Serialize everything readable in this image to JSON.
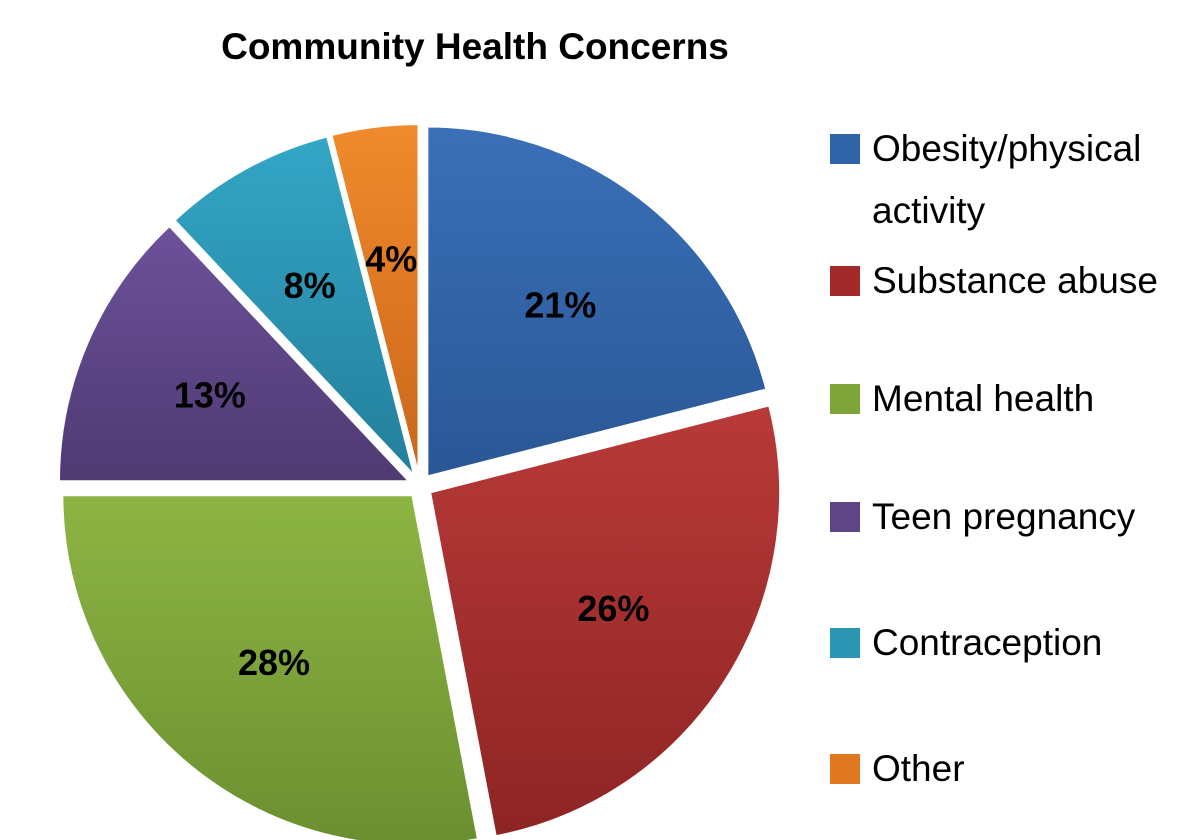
{
  "chart_data": {
    "type": "pie",
    "title": "Community Health Concerns",
    "legend_position": "right",
    "slices": [
      {
        "name": "Obesity/physical activity",
        "value": 21,
        "label": "21%",
        "color": "#3163a8"
      },
      {
        "name": "Substance abuse",
        "value": 26,
        "label": "26%",
        "color": "#a32a2a"
      },
      {
        "name": "Mental health",
        "value": 28,
        "label": "28%",
        "color": "#7fa53a"
      },
      {
        "name": "Teen pregnancy",
        "value": 13,
        "label": "13%",
        "color": "#5e4585"
      },
      {
        "name": "Contraception",
        "value": 8,
        "label": "8%",
        "color": "#2b95b4"
      },
      {
        "name": "Other",
        "value": 4,
        "label": "4%",
        "color": "#e0781f"
      }
    ]
  }
}
